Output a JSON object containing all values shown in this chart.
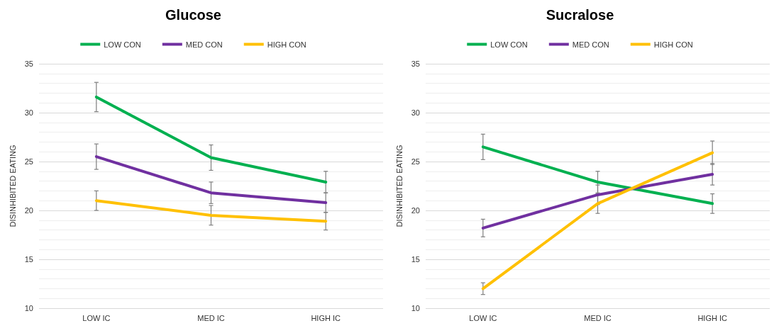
{
  "chart_data": [
    {
      "type": "line",
      "title": "Glucose",
      "ylabel": "DISINHIBITED EATING",
      "categories": [
        "LOW IC",
        "MED IC",
        "HIGH IC"
      ],
      "series": [
        {
          "name": "LOW CON",
          "color": "#00b050",
          "values": [
            31.6,
            25.4,
            22.9
          ],
          "errors": [
            1.5,
            1.3,
            1.1
          ]
        },
        {
          "name": "MED CON",
          "color": "#7030a0",
          "values": [
            25.5,
            21.8,
            20.8
          ],
          "errors": [
            1.3,
            1.1,
            1.0
          ]
        },
        {
          "name": "HIGH CON",
          "color": "#ffc000",
          "values": [
            21.0,
            19.5,
            18.9
          ],
          "errors": [
            1.0,
            1.0,
            0.9
          ]
        }
      ],
      "ylim": [
        10,
        35
      ],
      "yticks": [
        10,
        15,
        20,
        25,
        30,
        35
      ],
      "grid": "y",
      "legend": "top",
      "marker": "none"
    },
    {
      "type": "line",
      "title": "Sucralose",
      "ylabel": "DISINHIBITED EATING",
      "categories": [
        "LOW IC",
        "MED IC",
        "HIGH IC"
      ],
      "series": [
        {
          "name": "LOW CON",
          "color": "#00b050",
          "values": [
            26.5,
            22.9,
            20.7
          ],
          "errors": [
            1.3,
            1.1,
            1.0
          ]
        },
        {
          "name": "MED CON",
          "color": "#7030a0",
          "values": [
            18.2,
            21.6,
            23.7
          ],
          "errors": [
            0.9,
            1.0,
            1.1
          ]
        },
        {
          "name": "HIGH CON",
          "color": "#ffc000",
          "values": [
            12.0,
            20.7,
            25.9
          ],
          "errors": [
            0.6,
            1.0,
            1.2
          ]
        }
      ],
      "ylim": [
        10,
        35
      ],
      "yticks": [
        10,
        15,
        20,
        25,
        30,
        35
      ],
      "grid": "y",
      "legend": "top",
      "marker": "none"
    }
  ]
}
